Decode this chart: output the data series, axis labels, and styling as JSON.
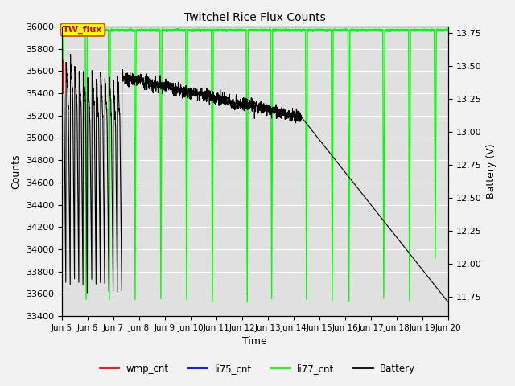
{
  "title": "Twitchel Rice Flux Counts",
  "xlabel": "Time",
  "ylabel_left": "Counts",
  "ylabel_right": "Battery (V)",
  "ylim_left": [
    33400,
    36000
  ],
  "ylim_right": [
    11.6,
    13.8
  ],
  "x_tick_labels": [
    "Jun 5",
    "Jun 6",
    "Jun 7",
    "Jun 8",
    "Jun 9",
    "Jun 10",
    "Jun 11",
    "Jun 12",
    "Jun 13",
    "Jun 14",
    "Jun 15",
    "Jun 16",
    "Jun 17",
    "Jun 18",
    "Jun 19",
    "Jun 20"
  ],
  "annotation_label": "TW_flux",
  "annotation_facecolor": "#ffff00",
  "annotation_edgecolor": "#cc6600",
  "annotation_textcolor": "#cc0000",
  "li77_color": "#00ff00",
  "wmp_color": "#ff0000",
  "li75_color": "#0000ff",
  "battery_color": "#000000",
  "plot_bg_color": "#e0e0e0",
  "fig_bg_color": "#f2f2f2",
  "grid_color": "#ffffff"
}
